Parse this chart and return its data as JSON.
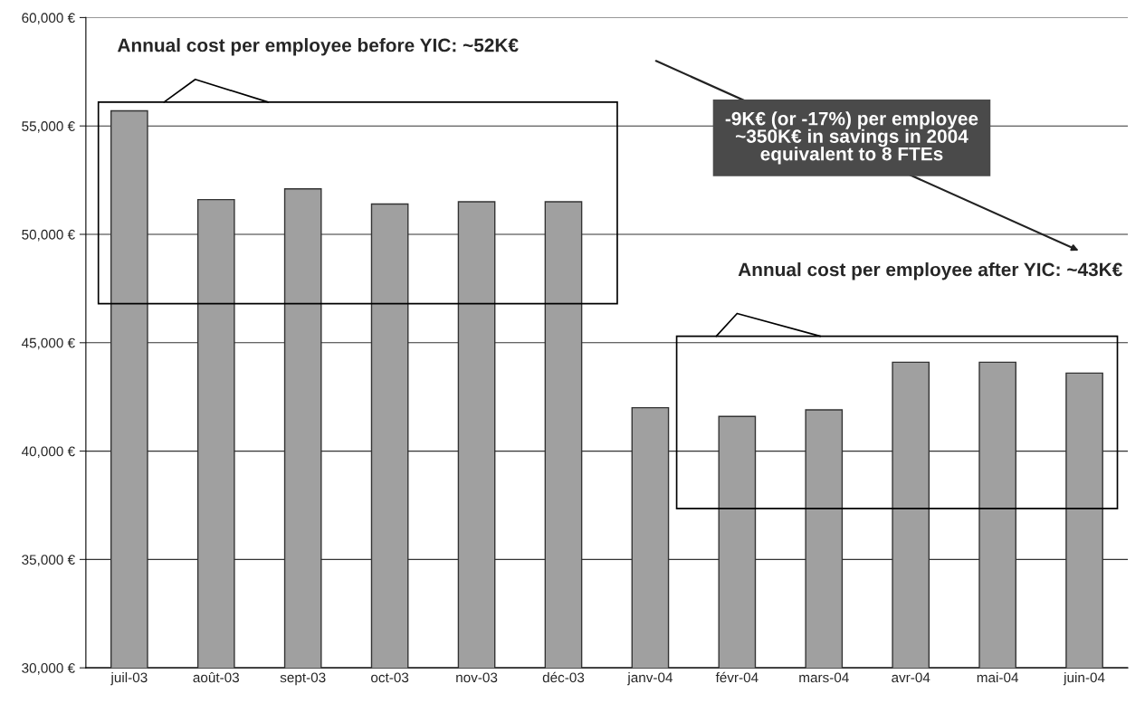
{
  "chart_data": {
    "type": "bar",
    "categories": [
      "juil-03",
      "août-03",
      "sept-03",
      "oct-03",
      "nov-03",
      "déc-03",
      "janv-04",
      "févr-04",
      "mars-04",
      "avr-04",
      "mai-04",
      "juin-04"
    ],
    "values": [
      55700,
      51600,
      52100,
      51400,
      51500,
      51500,
      42000,
      41600,
      41900,
      44100,
      44100,
      43600
    ],
    "color": "#a0a0a0",
    "ylim": [
      30000,
      60000
    ],
    "yticks": [
      {
        "value": 30000,
        "label": "30,000 €"
      },
      {
        "value": 35000,
        "label": "35,000 €"
      },
      {
        "value": 40000,
        "label": "40,000 €"
      },
      {
        "value": 45000,
        "label": "45,000 €"
      },
      {
        "value": 50000,
        "label": "50,000 €"
      },
      {
        "value": 55000,
        "label": "55,000 €"
      },
      {
        "value": 60000,
        "label": "60,000 €"
      }
    ],
    "grid": "y",
    "annotations": [
      "Annual cost per employee before YIC: ~52K€",
      "-9K€ (or -17%) per employee\n~350K€ in savings in 2004\nequivalent to 8 FTEs",
      "Annual cost per employee after YIC: ~43K€"
    ]
  }
}
